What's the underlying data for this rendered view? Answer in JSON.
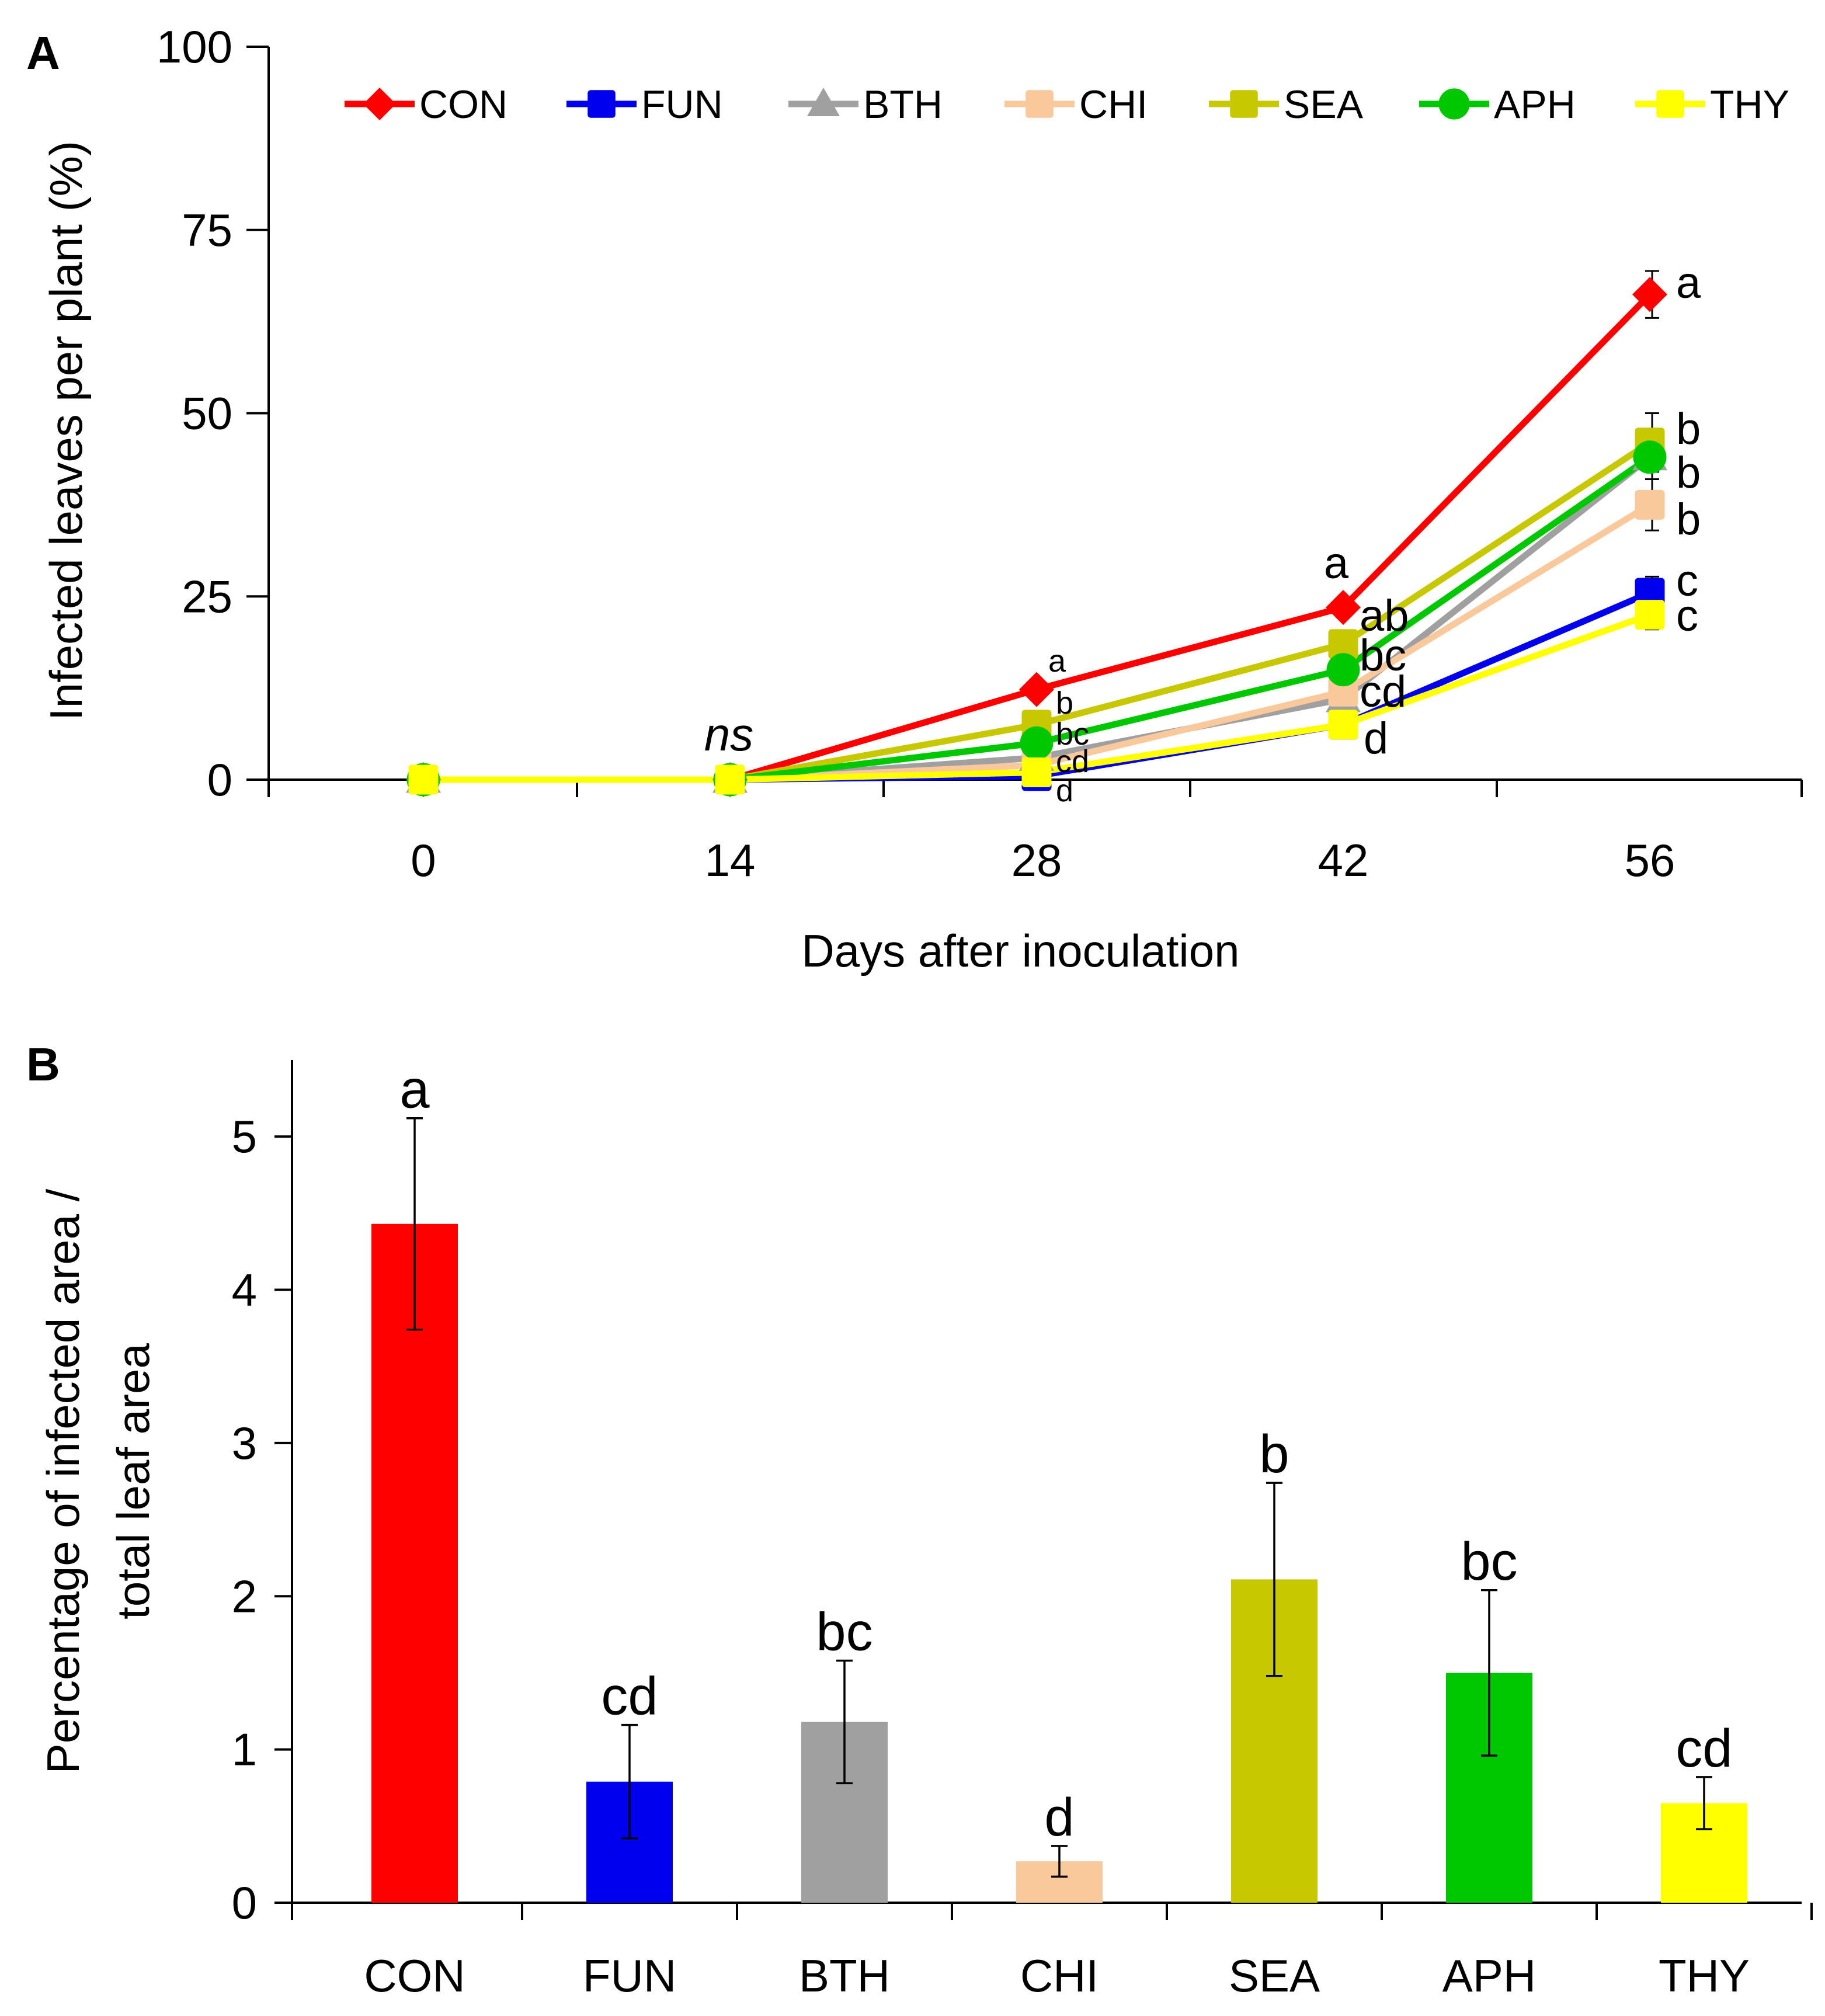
{
  "chart_data": [
    {
      "panel": "A",
      "type": "line",
      "ylabel": "Infected leaves per plant (%)",
      "xlabel": "Days after inoculation",
      "x": [
        0,
        14,
        28,
        42,
        56
      ],
      "xticks": [
        "0",
        "14",
        "28",
        "42",
        "56"
      ],
      "ylim": [
        0,
        100
      ],
      "yticks": [
        "0",
        "25",
        "50",
        "75",
        "100"
      ],
      "series": [
        {
          "name": "CON",
          "color": "#ff0000",
          "marker": "diamond",
          "values": [
            0,
            0,
            12.3,
            23.5,
            66.2
          ],
          "err": [
            0,
            0,
            0,
            0,
            3.2
          ]
        },
        {
          "name": "FUN",
          "color": "#0000ee",
          "marker": "square",
          "values": [
            0,
            0,
            0.5,
            7.5,
            25.5
          ],
          "err": [
            0,
            0,
            0,
            0,
            2.2
          ]
        },
        {
          "name": "BTH",
          "color": "#a0a0a0",
          "marker": "triangle",
          "values": [
            0,
            0,
            3.0,
            11.0,
            44.0
          ],
          "err": [
            0,
            0,
            0,
            0,
            3.0
          ]
        },
        {
          "name": "CHI",
          "color": "#f9c89b",
          "marker": "square",
          "values": [
            0,
            0,
            2.0,
            12.0,
            37.5
          ],
          "err": [
            0,
            0,
            0,
            0,
            3.5
          ]
        },
        {
          "name": "SEA",
          "color": "#c8c800",
          "marker": "square",
          "values": [
            0,
            0,
            7.5,
            18.5,
            46.0
          ],
          "err": [
            0,
            0,
            0,
            0,
            4.0
          ]
        },
        {
          "name": "APH",
          "color": "#00c800",
          "marker": "circle",
          "values": [
            0,
            0,
            5.0,
            15.0,
            44.0
          ],
          "err": [
            0,
            0,
            0,
            0,
            3.0
          ]
        },
        {
          "name": "THY",
          "color": "#ffff00",
          "marker": "square",
          "values": [
            0,
            0,
            1.0,
            7.5,
            22.5
          ],
          "err": [
            0,
            0,
            0,
            0,
            2.0
          ]
        }
      ],
      "annotations": [
        {
          "text": "ns",
          "x": 14,
          "y": 0
        },
        {
          "text": "a",
          "x": 28,
          "y": 12.3,
          "series": "CON"
        },
        {
          "text": "b",
          "x": 28,
          "y": 7.5,
          "series": "SEA"
        },
        {
          "text": "bc",
          "x": 28,
          "y": 5.0,
          "series": "APH"
        },
        {
          "text": "cd",
          "x": 28,
          "y": 2.0,
          "series": "CHI"
        },
        {
          "text": "d",
          "x": 28,
          "y": 0.5,
          "series": "FUN"
        },
        {
          "text": "a",
          "x": 42,
          "y": 23.5,
          "series": "CON"
        },
        {
          "text": "ab",
          "x": 42,
          "y": 18.5,
          "series": "SEA"
        },
        {
          "text": "bc",
          "x": 42,
          "y": 15.0,
          "series": "APH"
        },
        {
          "text": "cd",
          "x": 42,
          "y": 12.0,
          "series": "CHI"
        },
        {
          "text": "d",
          "x": 42,
          "y": 7.5,
          "series": "THY"
        },
        {
          "text": "a",
          "x": 56,
          "y": 66.2,
          "series": "CON"
        },
        {
          "text": "b",
          "x": 56,
          "y": 46.0,
          "series": "SEA"
        },
        {
          "text": "b",
          "x": 56,
          "y": 44.0,
          "series": "APH"
        },
        {
          "text": "b",
          "x": 56,
          "y": 37.5,
          "series": "CHI"
        },
        {
          "text": "c",
          "x": 56,
          "y": 25.5,
          "series": "FUN"
        },
        {
          "text": "c",
          "x": 56,
          "y": 22.5,
          "series": "THY"
        }
      ],
      "legend": [
        "CON",
        "FUN",
        "BTH",
        "CHI",
        "SEA",
        "APH",
        "THY"
      ]
    },
    {
      "panel": "B",
      "type": "bar",
      "ylabel": [
        "Percentage of infected area /",
        "total leaf area"
      ],
      "xlabel": "",
      "categories": [
        "CON",
        "FUN",
        "BTH",
        "CHI",
        "SEA",
        "APH",
        "THY"
      ],
      "values": [
        4.43,
        0.79,
        1.18,
        0.27,
        2.11,
        1.5,
        0.65
      ],
      "err": [
        0.69,
        0.37,
        0.4,
        0.1,
        0.63,
        0.54,
        0.17
      ],
      "letters": [
        "a",
        "cd",
        "bc",
        "d",
        "b",
        "bc",
        "cd"
      ],
      "colors": [
        "#ff0000",
        "#0000ee",
        "#a0a0a0",
        "#f9c89b",
        "#c8c800",
        "#00c800",
        "#ffff00"
      ],
      "ylim": [
        0,
        5.5
      ],
      "yticks": [
        "0",
        "1",
        "2",
        "3",
        "4",
        "5"
      ]
    }
  ]
}
